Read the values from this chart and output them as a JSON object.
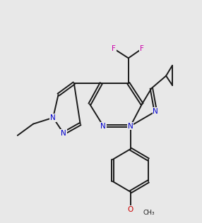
{
  "bg_color": "#e8e8e8",
  "bond_color": "#1a1a1a",
  "N_color": "#0000cc",
  "F_color": "#cc00aa",
  "O_color": "#cc0000",
  "lw": 1.4,
  "dbl_off": 0.006
}
